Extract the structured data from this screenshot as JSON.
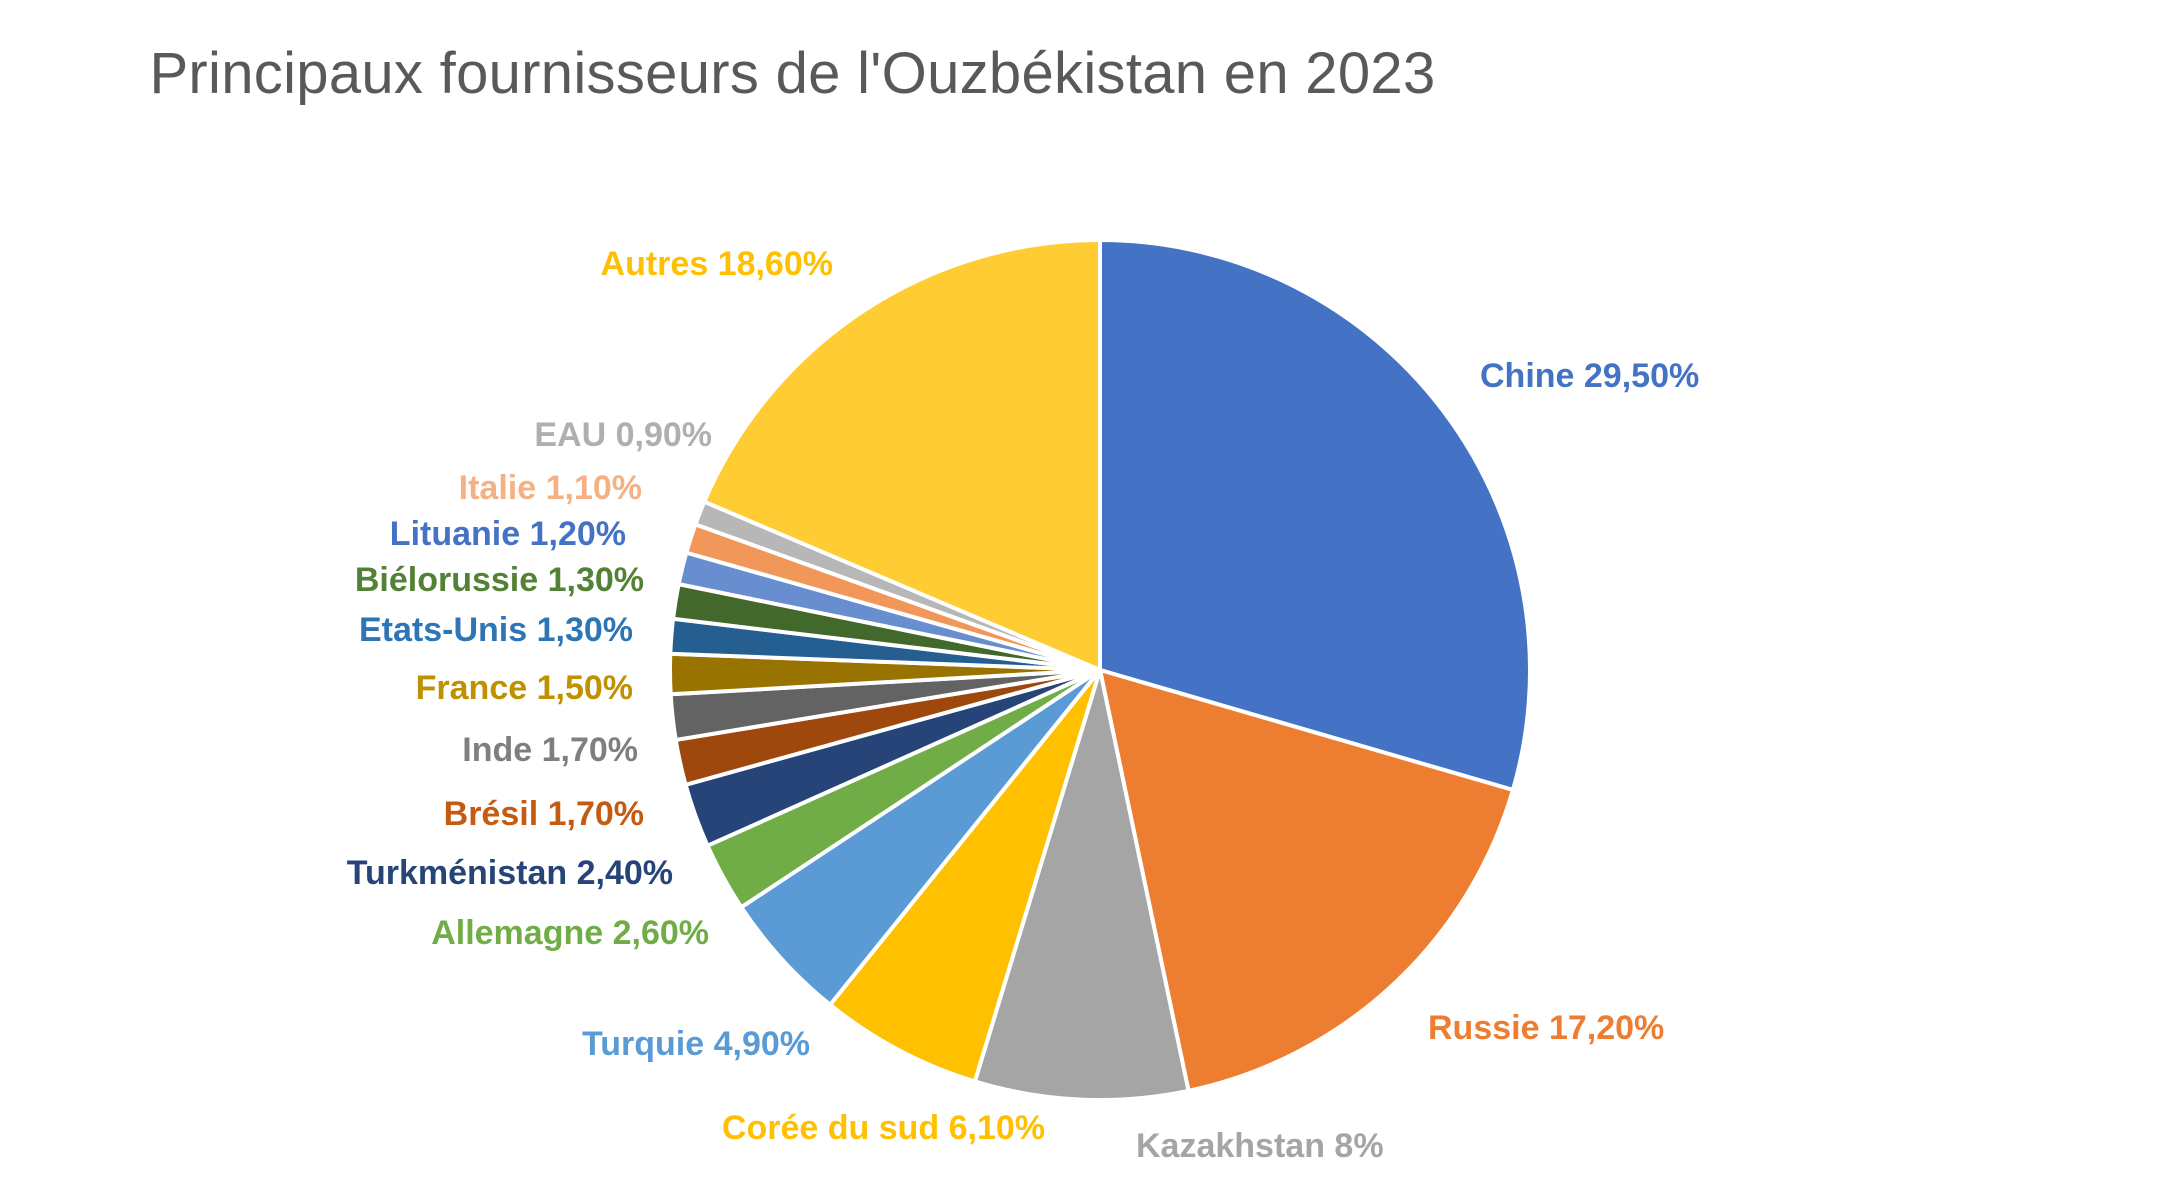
{
  "chart_data": {
    "type": "pie",
    "title": "Principaux fournisseurs de l'Ouzbékistan en 2023",
    "start_angle_deg": 0,
    "direction": "clockwise",
    "slices": [
      {
        "name": "Chine",
        "value": 29.5,
        "label": "Chine 29,50%",
        "color": "#4472C4",
        "label_color": "#4472C4"
      },
      {
        "name": "Russie",
        "value": 17.2,
        "label": "Russie 17,20%",
        "color": "#ED7D31",
        "label_color": "#ED7D31"
      },
      {
        "name": "Kazakhstan",
        "value": 8.0,
        "label": "Kazakhstan 8%",
        "color": "#A5A5A5",
        "label_color": "#A5A5A5"
      },
      {
        "name": "Corée du sud",
        "value": 6.1,
        "label": "Corée du sud 6,10%",
        "color": "#FFC000",
        "label_color": "#FFC000"
      },
      {
        "name": "Turquie",
        "value": 4.9,
        "label": "Turquie 4,90%",
        "color": "#5B9BD5",
        "label_color": "#5B9BD5"
      },
      {
        "name": "Allemagne",
        "value": 2.6,
        "label": "Allemagne 2,60%",
        "color": "#70AD47",
        "label_color": "#70AD47"
      },
      {
        "name": "Turkménistan",
        "value": 2.4,
        "label": "Turkménistan 2,40%",
        "color": "#264478",
        "label_color": "#264478"
      },
      {
        "name": "Brésil",
        "value": 1.7,
        "label": "Brésil 1,70%",
        "color": "#9E480E",
        "label_color": "#C55A11"
      },
      {
        "name": "Inde",
        "value": 1.7,
        "label": "Inde 1,70%",
        "color": "#636363",
        "label_color": "#7F7F7F"
      },
      {
        "name": "France",
        "value": 1.5,
        "label": "France 1,50%",
        "color": "#997300",
        "label_color": "#BF9000"
      },
      {
        "name": "Etats-Unis",
        "value": 1.3,
        "label": "Etats-Unis 1,30%",
        "color": "#255E91",
        "label_color": "#2E75B6"
      },
      {
        "name": "Biélorussie",
        "value": 1.3,
        "label": "Biélorussie 1,30%",
        "color": "#43682B",
        "label_color": "#538135"
      },
      {
        "name": "Lituanie",
        "value": 1.2,
        "label": "Lituanie 1,20%",
        "color": "#698ED0",
        "label_color": "#4472C4"
      },
      {
        "name": "Italie",
        "value": 1.1,
        "label": "Italie 1,10%",
        "color": "#F1975A",
        "label_color": "#F4B183"
      },
      {
        "name": "EAU",
        "value": 0.9,
        "label": "EAU 0,90%",
        "color": "#B7B7B7",
        "label_color": "#AFAFAF"
      },
      {
        "name": "Autres",
        "value": 18.6,
        "label": "Autres 18,60%",
        "color": "#FFCD33",
        "label_color": "#FFC000"
      }
    ]
  }
}
